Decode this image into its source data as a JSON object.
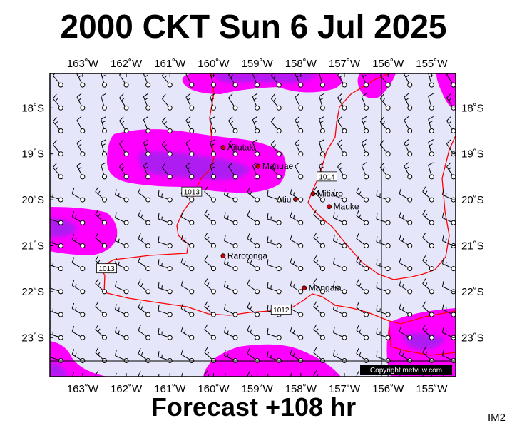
{
  "header": {
    "title": "2000 CKT Sun 6 Jul 2025"
  },
  "footer": {
    "forecast": "Forecast +108 hr",
    "product_code": "IM2"
  },
  "copyright": "Copyright metvuw.com",
  "colors": {
    "background": "#e6e6fa",
    "rain_light": "#ff00ff",
    "rain_heavy": "#a020f0",
    "isobar": "#ff0000",
    "place_marker": "#cc0000"
  },
  "map": {
    "lon_range": [
      -163.75,
      -154.45
    ],
    "lat_range": [
      -23.85,
      -17.25
    ],
    "lon_ticks": [
      {
        "value": -163,
        "label": "163˚W"
      },
      {
        "value": -162,
        "label": "162˚W"
      },
      {
        "value": -161,
        "label": "161˚W"
      },
      {
        "value": -160,
        "label": "160˚W"
      },
      {
        "value": -159,
        "label": "159˚W"
      },
      {
        "value": -158,
        "label": "158˚W"
      },
      {
        "value": -157,
        "label": "157˚W"
      },
      {
        "value": -156,
        "label": "156˚W"
      },
      {
        "value": -155,
        "label": "155˚W"
      }
    ],
    "lat_ticks": [
      {
        "value": -18,
        "label": "18˚S"
      },
      {
        "value": -19,
        "label": "19˚S"
      },
      {
        "value": -20,
        "label": "20˚S"
      },
      {
        "value": -21,
        "label": "21˚S"
      },
      {
        "value": -22,
        "label": "22˚S"
      },
      {
        "value": -23,
        "label": "23˚S"
      }
    ],
    "places": [
      {
        "name": "Aitutaki",
        "lon": -159.78,
        "lat": -18.86,
        "label_side": "right"
      },
      {
        "name": "Manuae",
        "lon": -158.98,
        "lat": -19.27,
        "label_side": "right"
      },
      {
        "name": "Atiu",
        "lon": -158.12,
        "lat": -19.99,
        "label_side": "left"
      },
      {
        "name": "Mitiaro",
        "lon": -157.72,
        "lat": -19.87,
        "label_side": "right"
      },
      {
        "name": "Mauke",
        "lon": -157.35,
        "lat": -20.15,
        "label_side": "right"
      },
      {
        "name": "Rarotonga",
        "lon": -159.78,
        "lat": -21.22,
        "label_side": "right"
      },
      {
        "name": "Mangaia",
        "lon": -157.92,
        "lat": -21.92,
        "label_side": "right"
      }
    ],
    "isobar_labels": [
      {
        "label": "1013",
        "lon": -160.5,
        "lat": -19.83
      },
      {
        "label": "1014",
        "lon": -157.4,
        "lat": -19.5
      },
      {
        "label": "1013",
        "lon": -162.45,
        "lat": -21.5
      },
      {
        "label": "1012",
        "lon": -158.45,
        "lat": -22.4
      }
    ],
    "wind_barbs": {
      "lon_start": -163.5,
      "lon_step": 0.5,
      "lon_count": 19,
      "lat_start": -17.5,
      "lat_step": 0.5,
      "lat_count": 14
    }
  }
}
